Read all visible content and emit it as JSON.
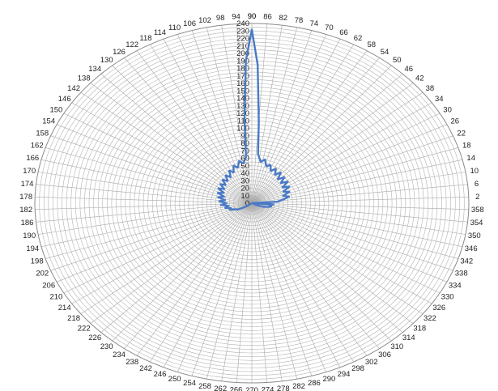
{
  "chart_data": {
    "type": "radar",
    "title": "",
    "angle_unit": "degrees",
    "angle_step": 4,
    "angle_labels": [
      "2",
      "6",
      "10",
      "14",
      "18",
      "22",
      "26",
      "30",
      "34",
      "38",
      "42",
      "46",
      "50",
      "54",
      "58",
      "62",
      "66",
      "70",
      "74",
      "78",
      "82",
      "86",
      "90",
      "94",
      "98",
      "102",
      "106",
      "110",
      "114",
      "118",
      "122",
      "126",
      "130",
      "134",
      "138",
      "142",
      "146",
      "150",
      "154",
      "158",
      "162",
      "166",
      "170",
      "174",
      "178",
      "182",
      "186",
      "190",
      "194",
      "198",
      "202",
      "206",
      "210",
      "214",
      "218",
      "222",
      "226",
      "230",
      "234",
      "238",
      "242",
      "246",
      "250",
      "254",
      "258",
      "262",
      "266",
      "270",
      "274",
      "278",
      "282",
      "286",
      "290",
      "294",
      "298",
      "302",
      "306",
      "310",
      "314",
      "318",
      "322",
      "326",
      "330",
      "334",
      "338",
      "342",
      "346",
      "350",
      "354",
      "358"
    ],
    "radial_labels": [
      "0",
      "10",
      "20",
      "30",
      "40",
      "50",
      "60",
      "70",
      "80",
      "90",
      "100",
      "110",
      "120",
      "130",
      "140",
      "150",
      "160",
      "170",
      "180",
      "190",
      "200",
      "210",
      "220",
      "230",
      "240"
    ],
    "rlim": [
      0,
      240
    ],
    "grid": true,
    "legend": "none",
    "series": [
      {
        "color": "#4a7ac6",
        "points": [
          {
            "angle": 0,
            "r": 0
          },
          {
            "angle": 4,
            "r": 28
          },
          {
            "angle": 8,
            "r": 35
          },
          {
            "angle": 12,
            "r": 42
          },
          {
            "angle": 16,
            "r": 36
          },
          {
            "angle": 20,
            "r": 44
          },
          {
            "angle": 24,
            "r": 38
          },
          {
            "angle": 28,
            "r": 47
          },
          {
            "angle": 32,
            "r": 40
          },
          {
            "angle": 36,
            "r": 49
          },
          {
            "angle": 40,
            "r": 42
          },
          {
            "angle": 44,
            "r": 50
          },
          {
            "angle": 48,
            "r": 43
          },
          {
            "angle": 52,
            "r": 52
          },
          {
            "angle": 56,
            "r": 46
          },
          {
            "angle": 60,
            "r": 53
          },
          {
            "angle": 64,
            "r": 48
          },
          {
            "angle": 68,
            "r": 55
          },
          {
            "angle": 72,
            "r": 52
          },
          {
            "angle": 76,
            "r": 60
          },
          {
            "angle": 80,
            "r": 56
          },
          {
            "angle": 84,
            "r": 66
          },
          {
            "angle": 86,
            "r": 110
          },
          {
            "angle": 88,
            "r": 185
          },
          {
            "angle": 90,
            "r": 232
          },
          {
            "angle": 92,
            "r": 190
          },
          {
            "angle": 94,
            "r": 115
          },
          {
            "angle": 96,
            "r": 62
          },
          {
            "angle": 100,
            "r": 54
          },
          {
            "angle": 104,
            "r": 58
          },
          {
            "angle": 108,
            "r": 50
          },
          {
            "angle": 112,
            "r": 54
          },
          {
            "angle": 116,
            "r": 46
          },
          {
            "angle": 120,
            "r": 50
          },
          {
            "angle": 124,
            "r": 42
          },
          {
            "angle": 128,
            "r": 47
          },
          {
            "angle": 132,
            "r": 40
          },
          {
            "angle": 136,
            "r": 45
          },
          {
            "angle": 140,
            "r": 38
          },
          {
            "angle": 144,
            "r": 43
          },
          {
            "angle": 148,
            "r": 36
          },
          {
            "angle": 152,
            "r": 42
          },
          {
            "angle": 156,
            "r": 34
          },
          {
            "angle": 160,
            "r": 40
          },
          {
            "angle": 164,
            "r": 32
          },
          {
            "angle": 168,
            "r": 38
          },
          {
            "angle": 172,
            "r": 30
          },
          {
            "angle": 176,
            "r": 36
          },
          {
            "angle": 180,
            "r": 28
          },
          {
            "angle": 184,
            "r": 34
          },
          {
            "angle": 188,
            "r": 26
          },
          {
            "angle": 192,
            "r": 30
          },
          {
            "angle": 196,
            "r": 24
          },
          {
            "angle": 200,
            "r": 26
          },
          {
            "angle": 204,
            "r": 20
          },
          {
            "angle": 208,
            "r": 18
          },
          {
            "angle": 212,
            "r": 12
          },
          {
            "angle": 216,
            "r": 6
          },
          {
            "angle": 220,
            "r": 0
          },
          {
            "angle": 330,
            "r": 0
          },
          {
            "angle": 336,
            "r": 8
          },
          {
            "angle": 340,
            "r": 14
          },
          {
            "angle": 344,
            "r": 18
          },
          {
            "angle": 348,
            "r": 22
          },
          {
            "angle": 352,
            "r": 20
          },
          {
            "angle": 356,
            "r": 24
          },
          {
            "angle": 360,
            "r": 0
          }
        ]
      }
    ]
  }
}
